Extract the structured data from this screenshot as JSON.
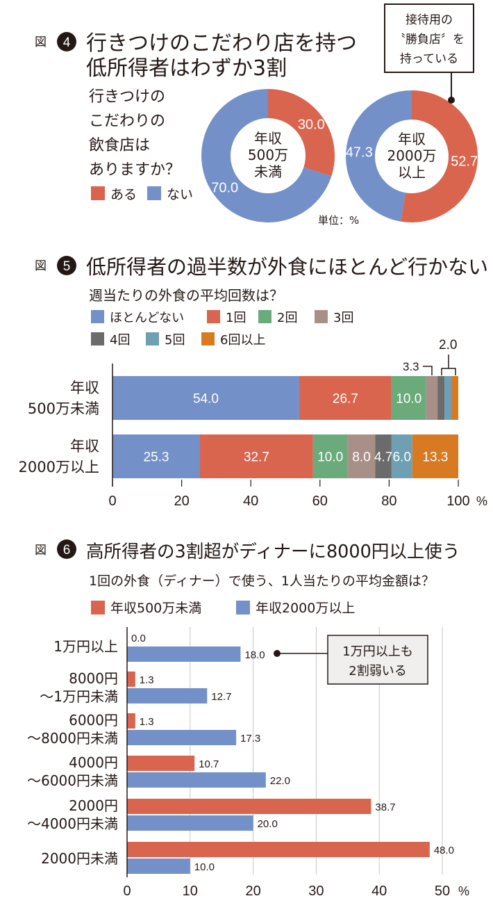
{
  "colors": {
    "red": "#d9654f",
    "blue": "#7390c9",
    "green": "#6aaa7b",
    "mauve": "#a89089",
    "dark": "#6b6b6b",
    "teal": "#6e9fb3",
    "orange": "#d87a22",
    "text": "#231815"
  },
  "fig4": {
    "fig_label": "図",
    "number": "4",
    "title_line1": "行きつけのこだわり店を持つ",
    "title_line2": "低所得者はわずか3割",
    "question": [
      "行きつけの",
      "こだわりの",
      "飲食店は",
      "ありますか？"
    ],
    "callout": [
      "接待用の",
      "〝勝負店〞を",
      "持っている"
    ],
    "unit": "単位：%",
    "legend": [
      {
        "label": "ある",
        "color": "#d9654f"
      },
      {
        "label": "ない",
        "color": "#7390c9"
      }
    ],
    "chart_data": {
      "type": "pie",
      "categories": [
        "ある",
        "ない"
      ],
      "series": [
        {
          "name": "年収500万未満",
          "center_label": [
            "年収",
            "500万",
            "未満"
          ],
          "values": [
            30.0,
            70.0
          ],
          "value_labels": [
            "30.0",
            "70.0"
          ]
        },
        {
          "name": "年収2000万以上",
          "center_label": [
            "年収",
            "2000万",
            "以上"
          ],
          "values": [
            52.7,
            47.3
          ],
          "value_labels": [
            "52.7",
            "47.3"
          ]
        }
      ]
    }
  },
  "fig5": {
    "fig_label": "図",
    "number": "5",
    "title": "低所得者の過半数が外食にほとんど行かない",
    "question": "週当たりの外食の平均回数は？",
    "annotation_33": "3.3",
    "annotation_20": "2.0",
    "chart_data": {
      "type": "bar",
      "stacked": true,
      "orientation": "horizontal",
      "categories": [
        "年収500万未満",
        "年収2000万以上"
      ],
      "category_lines": [
        [
          "年収",
          "500万未満"
        ],
        [
          "年収",
          "2000万以上"
        ]
      ],
      "series": [
        {
          "name": "ほとんどない",
          "color": "#7390c9",
          "values": [
            54.0,
            25.3
          ],
          "labels": [
            "54.0",
            "25.3"
          ]
        },
        {
          "name": "1回",
          "color": "#d9654f",
          "values": [
            26.7,
            32.7
          ],
          "labels": [
            "26.7",
            "32.7"
          ]
        },
        {
          "name": "2回",
          "color": "#6aaa7b",
          "values": [
            10.0,
            10.0
          ],
          "labels": [
            "10.0",
            "10.0"
          ]
        },
        {
          "name": "3回",
          "color": "#a89089",
          "values": [
            3.3,
            8.0
          ],
          "labels": [
            "",
            "8.0"
          ]
        },
        {
          "name": "4回",
          "color": "#6b6b6b",
          "values": [
            2.0,
            4.7
          ],
          "labels": [
            "",
            "4.7"
          ]
        },
        {
          "name": "5回",
          "color": "#6e9fb3",
          "values": [
            2.0,
            6.0
          ],
          "labels": [
            "",
            "6.0"
          ]
        },
        {
          "name": "6回以上",
          "color": "#d87a22",
          "values": [
            2.0,
            13.3
          ],
          "labels": [
            "",
            "13.3"
          ]
        }
      ],
      "x_ticks": [
        "0",
        "20",
        "40",
        "60",
        "80",
        "100"
      ],
      "x_unit": "%",
      "xlim": [
        0,
        100
      ]
    }
  },
  "fig6": {
    "fig_label": "図",
    "number": "6",
    "title": "高所得者の3割超がディナーに8000円以上使う",
    "question": "1回の外食（ディナー）で使う、1人当たりの平均金額は？",
    "callout": [
      "1万円以上も",
      "2割弱いる"
    ],
    "chart_data": {
      "type": "bar",
      "orientation": "horizontal",
      "categories": [
        "1万円以上",
        "8000円～1万円未満",
        "6000円～8000円未満",
        "4000円～6000円未満",
        "2000円～4000円未満",
        "2000円未満"
      ],
      "category_lines": [
        [
          "1万円以上"
        ],
        [
          "8000円",
          "～1万円未満"
        ],
        [
          "6000円",
          "～8000円未満"
        ],
        [
          "4000円",
          "～6000円未満"
        ],
        [
          "2000円",
          "～4000円未満"
        ],
        [
          "2000円未満"
        ]
      ],
      "series": [
        {
          "name": "年収500万未満",
          "color": "#d9654f",
          "values": [
            0.0,
            1.3,
            1.3,
            10.7,
            38.7,
            48.0
          ],
          "labels": [
            "0.0",
            "1.3",
            "1.3",
            "10.7",
            "38.7",
            "48.0"
          ]
        },
        {
          "name": "年収2000万以上",
          "color": "#7390c9",
          "values": [
            18.0,
            12.7,
            17.3,
            22.0,
            20.0,
            10.0
          ],
          "labels": [
            "18.0",
            "12.7",
            "17.3",
            "22.0",
            "20.0",
            "10.0"
          ]
        }
      ],
      "x_ticks": [
        "0",
        "10",
        "20",
        "30",
        "40",
        "50"
      ],
      "x_unit": "%",
      "xlim": [
        0,
        50
      ]
    }
  }
}
